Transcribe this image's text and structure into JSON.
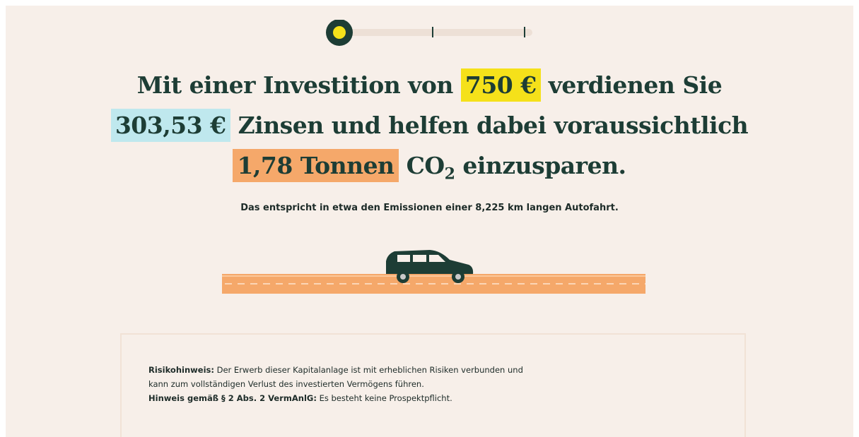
{
  "headline": {
    "line1": {
      "text_before": "Mit einer Investition von",
      "investment": "750 €",
      "text_after": "verdienen Sie"
    },
    "line2": {
      "interest": "303,53 €",
      "text_after": "Zinsen und helfen dabei voraussichtlich"
    },
    "line3": {
      "co2_amount": "1,78 Tonnen",
      "co2_word": "CO",
      "co2_subscript": "2",
      "text_after": "einzusparen."
    }
  },
  "subtitle": "Das entspricht in etwa den Emissionen einer 8,225 km langen Autofahrt.",
  "disclaimer": {
    "risk_label": "Risikohinweis:",
    "risk_text": "Der Erwerb dieser Kapitalanlage ist mit erheblichen Risiken verbunden und kann zum vollständigen Verlust des investierten Vermögens führen.",
    "notice_label": "Hinweis gemäß § 2 Abs. 2 VermAnlG:",
    "notice_text": "Es besteht keine Prospektpflicht."
  }
}
